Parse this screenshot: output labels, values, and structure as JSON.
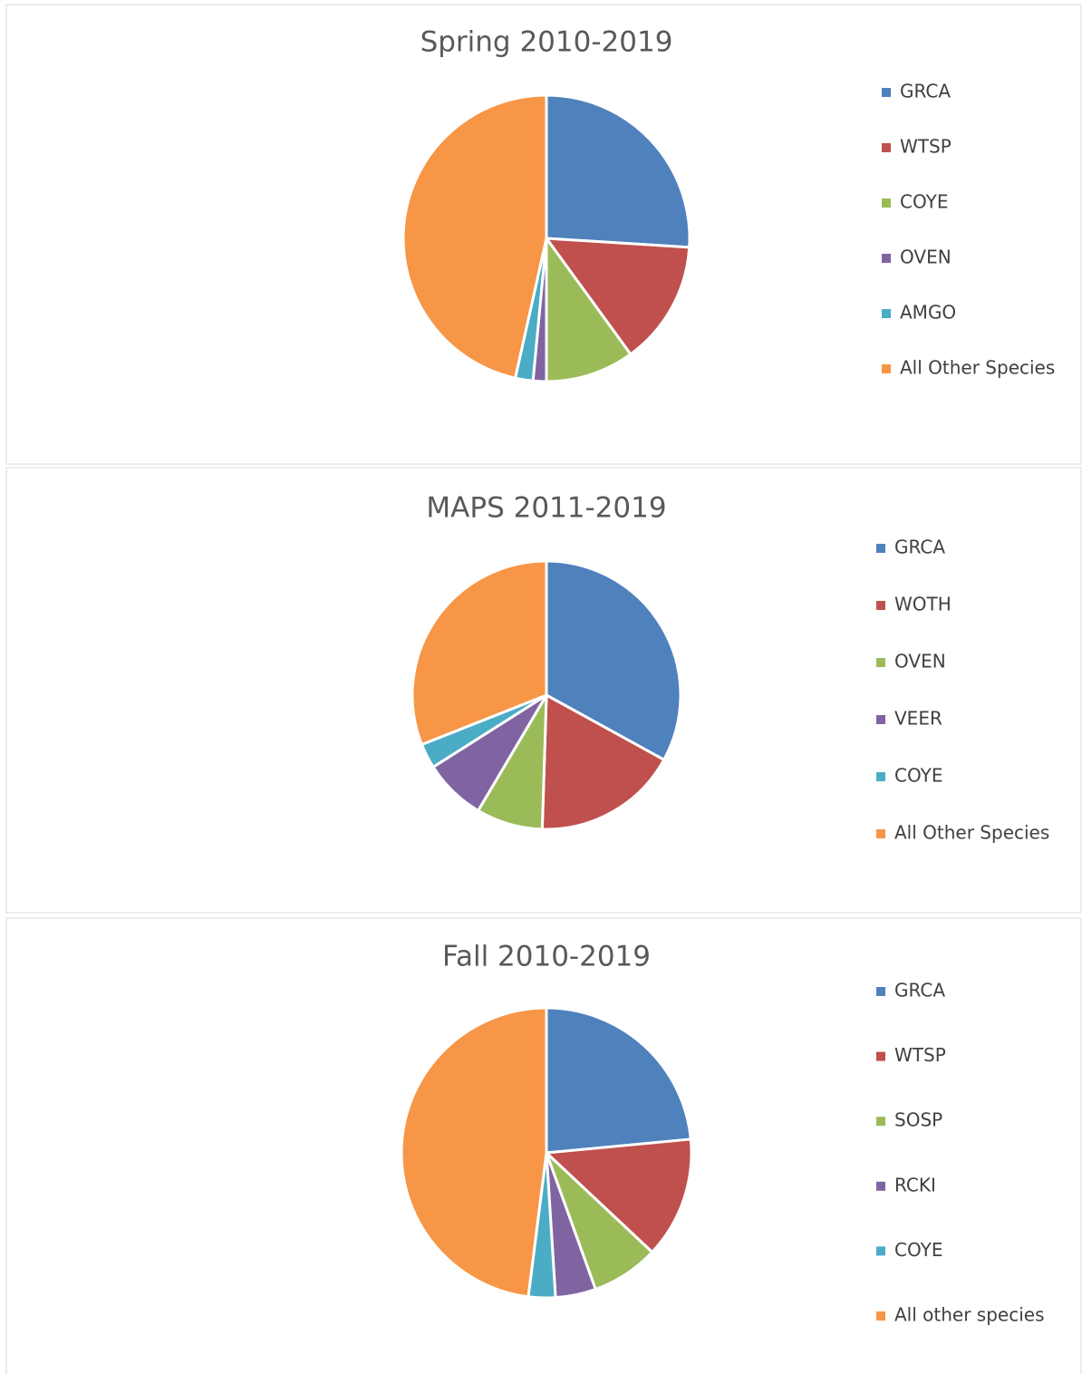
{
  "chart_data": [
    {
      "type": "pie",
      "title": "Spring 2010-2019",
      "categories": [
        "GRCA",
        "WTSP",
        "COYE",
        "OVEN",
        "AMGO",
        "All Other Species"
      ],
      "values": [
        26,
        14,
        10,
        1.5,
        2,
        46.5
      ],
      "colors": [
        "#4f81bd",
        "#c0504d",
        "#9bbb59",
        "#8064a2",
        "#4bacc6",
        "#f79646"
      ],
      "legend": "right"
    },
    {
      "type": "pie",
      "title": "MAPS 2011-2019",
      "categories": [
        "GRCA",
        "WOTH",
        "OVEN",
        "VEER",
        "COYE",
        "All Other Species"
      ],
      "values": [
        33,
        17.5,
        8,
        7.5,
        3,
        31
      ],
      "colors": [
        "#4f81bd",
        "#c0504d",
        "#9bbb59",
        "#8064a2",
        "#4bacc6",
        "#f79646"
      ],
      "legend": "right"
    },
    {
      "type": "pie",
      "title": "Fall 2010-2019",
      "categories": [
        "GRCA",
        "WTSP",
        "SOSP",
        "RCKI",
        "COYE",
        "All other species"
      ],
      "values": [
        23.5,
        13.5,
        7.5,
        4.5,
        3,
        48
      ],
      "colors": [
        "#4f81bd",
        "#c0504d",
        "#9bbb59",
        "#8064a2",
        "#4bacc6",
        "#f79646"
      ],
      "legend": "right"
    }
  ]
}
